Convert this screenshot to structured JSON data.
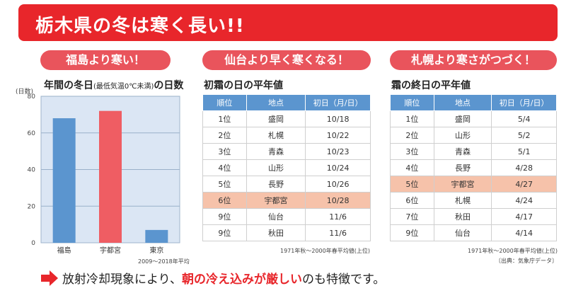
{
  "banner": {
    "title": "栃木県の冬は寒く長い!!"
  },
  "panels": {
    "left": {
      "pill": "福島より寒い！",
      "title": "年間の冬日",
      "title_small": "(最低気温0℃未満)",
      "title_tail": "の日数",
      "unit": "(日数)",
      "note": "2009〜2018年平均"
    },
    "middle": {
      "pill": "仙台より早く寒くなる！",
      "title": "初霜の日の平年値",
      "note": "1971年秋〜2000年春平均値(上位)"
    },
    "right": {
      "pill": "札幌より寒さがつづく！",
      "title": "霜の終日の平年値",
      "note": "1971年秋〜2000年春平均値(上位)",
      "source": "〔出典：気象庁データ〕"
    }
  },
  "chart_data": {
    "type": "bar",
    "categories": [
      "福島",
      "宇都宮",
      "東京"
    ],
    "values": [
      68,
      72,
      7
    ],
    "colors": [
      "#5b95cf",
      "#ef5d63",
      "#5b95cf"
    ],
    "ylim": [
      0,
      80
    ],
    "yticks": [
      0,
      20,
      40,
      60,
      80
    ],
    "grid": true,
    "ylabel": "(日数)"
  },
  "table_first_frost": {
    "headers": [
      "順位",
      "地点",
      "初日（月/日）"
    ],
    "rows": [
      [
        "1位",
        "盛岡",
        "10/18"
      ],
      [
        "2位",
        "札幌",
        "10/22"
      ],
      [
        "3位",
        "青森",
        "10/23"
      ],
      [
        "4位",
        "山形",
        "10/24"
      ],
      [
        "5位",
        "長野",
        "10/26"
      ],
      [
        "6位",
        "宇都宮",
        "10/28"
      ],
      [
        "9位",
        "仙台",
        "11/6"
      ],
      [
        "9位",
        "秋田",
        "11/6"
      ]
    ],
    "highlight_row": 5
  },
  "table_last_frost": {
    "headers": [
      "順位",
      "地点",
      "初日（月/日）"
    ],
    "rows": [
      [
        "1位",
        "盛岡",
        "5/4"
      ],
      [
        "2位",
        "山形",
        "5/2"
      ],
      [
        "3位",
        "青森",
        "5/1"
      ],
      [
        "4位",
        "長野",
        "4/28"
      ],
      [
        "5位",
        "宇都宮",
        "4/27"
      ],
      [
        "6位",
        "札幌",
        "4/24"
      ],
      [
        "7位",
        "秋田",
        "4/17"
      ],
      [
        "9位",
        "仙台",
        "4/14"
      ]
    ],
    "highlight_row": 4
  },
  "footer": {
    "pre": "放射冷却現象により、",
    "emphasis": "朝の冷え込みが厳しい",
    "post": "のも特徴です。",
    "arrow_color": "#e8262b"
  }
}
